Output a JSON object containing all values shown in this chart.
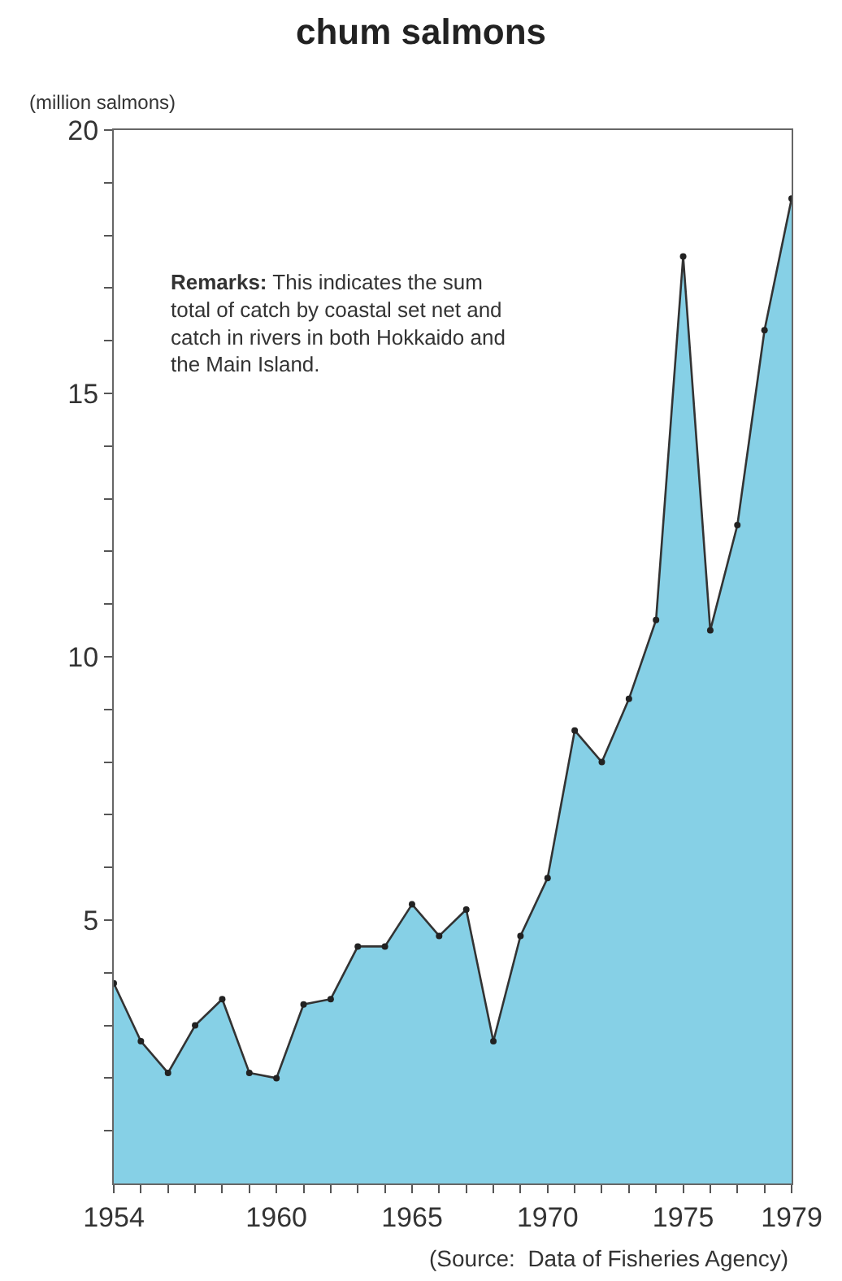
{
  "chart_data": {
    "type": "area",
    "title": "chum salmons",
    "ylabel": "(million salmons)",
    "x": [
      1954,
      1955,
      1956,
      1957,
      1958,
      1959,
      1960,
      1961,
      1962,
      1963,
      1964,
      1965,
      1966,
      1967,
      1968,
      1969,
      1970,
      1971,
      1972,
      1973,
      1974,
      1975,
      1976,
      1977,
      1978,
      1979
    ],
    "series": [
      {
        "color": "#86d0e6",
        "values": [
          3.8,
          2.7,
          2.1,
          3.0,
          3.5,
          2.1,
          2.0,
          3.4,
          3.5,
          4.5,
          4.5,
          5.3,
          4.7,
          5.2,
          2.7,
          4.7,
          5.8,
          8.6,
          8.0,
          9.2,
          10.7,
          17.6,
          10.5,
          12.5,
          16.2,
          18.7
        ]
      }
    ],
    "xlim": [
      1954,
      1979
    ],
    "xticks": [
      1954,
      {
        "value": 1955,
        "label": null
      },
      {
        "value": 1956,
        "label": null
      },
      {
        "value": 1957,
        "label": null
      },
      {
        "value": 1958,
        "label": null
      },
      {
        "value": 1959,
        "label": null
      },
      1960,
      {
        "value": 1961,
        "label": null
      },
      {
        "value": 1962,
        "label": null
      },
      {
        "value": 1963,
        "label": null
      },
      {
        "value": 1964,
        "label": null
      },
      1965,
      {
        "value": 1966,
        "label": null
      },
      {
        "value": 1967,
        "label": null
      },
      {
        "value": 1968,
        "label": null
      },
      {
        "value": 1969,
        "label": null
      },
      1970,
      {
        "value": 1971,
        "label": null
      },
      {
        "value": 1972,
        "label": null
      },
      {
        "value": 1973,
        "label": null
      },
      {
        "value": 1974,
        "label": null
      },
      1975,
      {
        "value": 1976,
        "label": null
      },
      {
        "value": 1977,
        "label": null
      },
      {
        "value": 1978,
        "label": null
      },
      1979
    ],
    "ylim": [
      0,
      20
    ],
    "yticks": [
      {
        "value": 1,
        "label": null
      },
      {
        "value": 2,
        "label": null
      },
      {
        "value": 3,
        "label": null
      },
      {
        "value": 4,
        "label": null
      },
      5,
      {
        "value": 6,
        "label": null
      },
      {
        "value": 7,
        "label": null
      },
      {
        "value": 8,
        "label": null
      },
      {
        "value": 9,
        "label": null
      },
      10,
      {
        "value": 11,
        "label": null
      },
      {
        "value": 12,
        "label": null
      },
      {
        "value": 13,
        "label": null
      },
      {
        "value": 14,
        "label": null
      },
      15,
      {
        "value": 16,
        "label": null
      },
      {
        "value": 17,
        "label": null
      },
      {
        "value": 18,
        "label": null
      },
      {
        "value": 19,
        "label": null
      },
      20
    ],
    "marker": "circle",
    "line_style": "solid",
    "annotations": [
      "Remarks: This indicates the sum total of catch by coastal set net and catch in rivers in both Hokkaido and the Main Island.",
      "(Source:  Data of Fisheries Agency)"
    ]
  }
}
